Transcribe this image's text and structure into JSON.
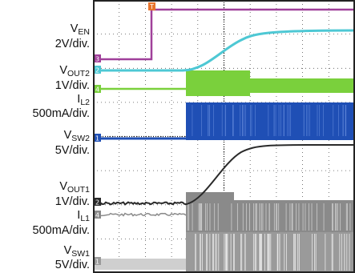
{
  "chart_data": {
    "type": "line",
    "title": "",
    "grid": true,
    "grid_divisions": {
      "x": 10,
      "y": 8
    },
    "channels": [
      {
        "name_main": "V",
        "name_sub": "EN",
        "scale": "2V/div.",
        "marker": "3",
        "color": "#a0409a",
        "kind": "step"
      },
      {
        "name_main": "V",
        "name_sub": "OUT2",
        "scale": "1V/div.",
        "marker": "2",
        "color": "#4ec8d4",
        "kind": "ramp"
      },
      {
        "name_main": "I",
        "name_sub": "L2",
        "scale": "500mA/div.",
        "marker": "4",
        "color": "#7ad03c",
        "kind": "noise-band"
      },
      {
        "name_main": "V",
        "name_sub": "SW2",
        "scale": "5V/div.",
        "marker": "1",
        "color": "#1f4fb5",
        "kind": "switching"
      },
      {
        "name_main": "V",
        "name_sub": "OUT1",
        "scale": "1V/div.",
        "marker": "2",
        "color": "#2a2a2a",
        "kind": "ramp"
      },
      {
        "name_main": "I",
        "name_sub": "L1",
        "scale": "500mA/div.",
        "marker": "4",
        "color": "#8a8a8a",
        "kind": "noise-band"
      },
      {
        "name_main": "V",
        "name_sub": "SW1",
        "scale": "5V/div.",
        "marker": "1",
        "color": "#9a9a9a",
        "kind": "switching"
      }
    ],
    "trigger_marker": "T"
  }
}
